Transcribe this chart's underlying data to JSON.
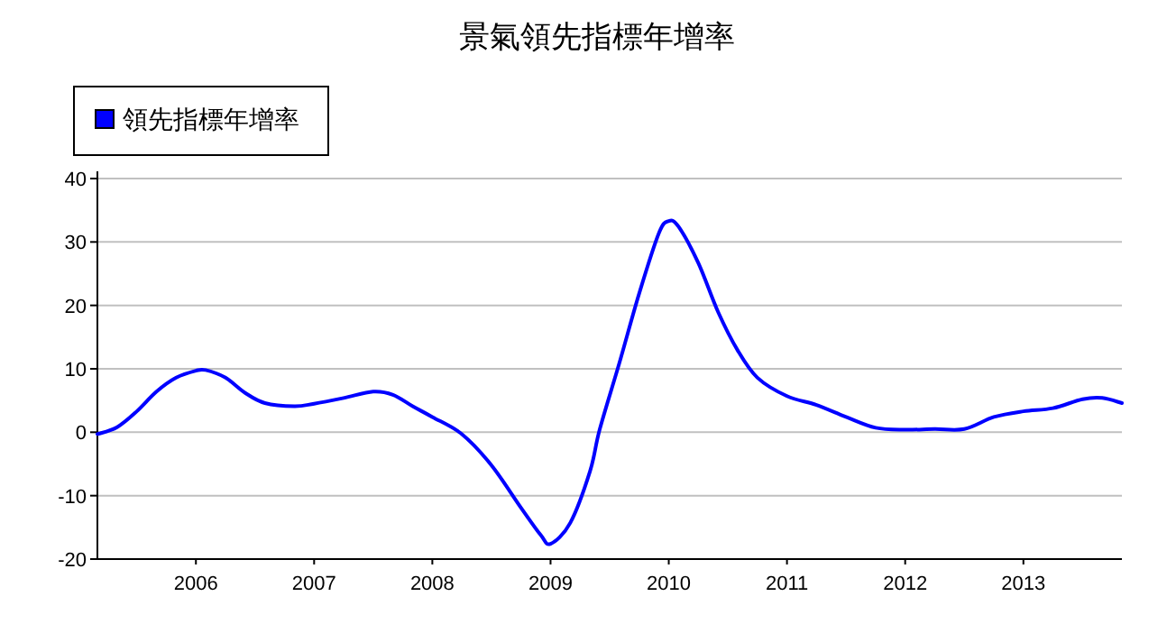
{
  "chart_data": {
    "type": "line",
    "title": "景氣領先指標年增率",
    "legend": "top left",
    "grid": "y",
    "line_style": "solid",
    "marker": "none",
    "x": [
      "2005-03",
      "2005-05",
      "2005-07",
      "2005-09",
      "2005-11",
      "2006-01",
      "2006-02",
      "2006-04",
      "2006-06",
      "2006-08",
      "2006-11",
      "2007-01",
      "2007-04",
      "2007-07",
      "2007-09",
      "2007-11",
      "2008-01",
      "2008-04",
      "2008-07",
      "2008-10",
      "2008-12",
      "2009-01",
      "2009-03",
      "2009-05",
      "2009-06",
      "2009-08",
      "2009-10",
      "2009-12",
      "2010-01",
      "2010-02",
      "2010-04",
      "2010-06",
      "2010-08",
      "2010-10",
      "2011-01",
      "2011-04",
      "2011-07",
      "2011-10",
      "2012-01",
      "2012-04",
      "2012-07",
      "2012-10",
      "2013-01",
      "2013-04",
      "2013-07",
      "2013-09",
      "2013-11"
    ],
    "series": [
      {
        "name": "領先指標年增率",
        "color": "#0000ff",
        "values": [
          -0.3,
          0.8,
          3.3,
          6.4,
          8.6,
          9.7,
          9.8,
          8.6,
          6.2,
          4.6,
          4.1,
          4.5,
          5.4,
          6.4,
          5.9,
          4.1,
          2.4,
          -0.3,
          -5.2,
          -11.9,
          -16.2,
          -17.6,
          -14.3,
          -6.2,
          0.5,
          11,
          21.9,
          31.4,
          33.3,
          32.4,
          26.7,
          19,
          12.9,
          8.6,
          5.7,
          4.3,
          2.4,
          0.7,
          0.4,
          0.5,
          0.5,
          2.4,
          3.3,
          3.8,
          5.2,
          5.4,
          4.6
        ]
      }
    ],
    "xlim": [
      "2005-03",
      "2013-11"
    ],
    "xticks": [
      "2006",
      "2007",
      "2008",
      "2009",
      "2010",
      "2011",
      "2012",
      "2013"
    ],
    "ylim": [
      -20,
      40
    ],
    "yticks": [
      -20,
      -10,
      0,
      10,
      20,
      30,
      40
    ]
  }
}
